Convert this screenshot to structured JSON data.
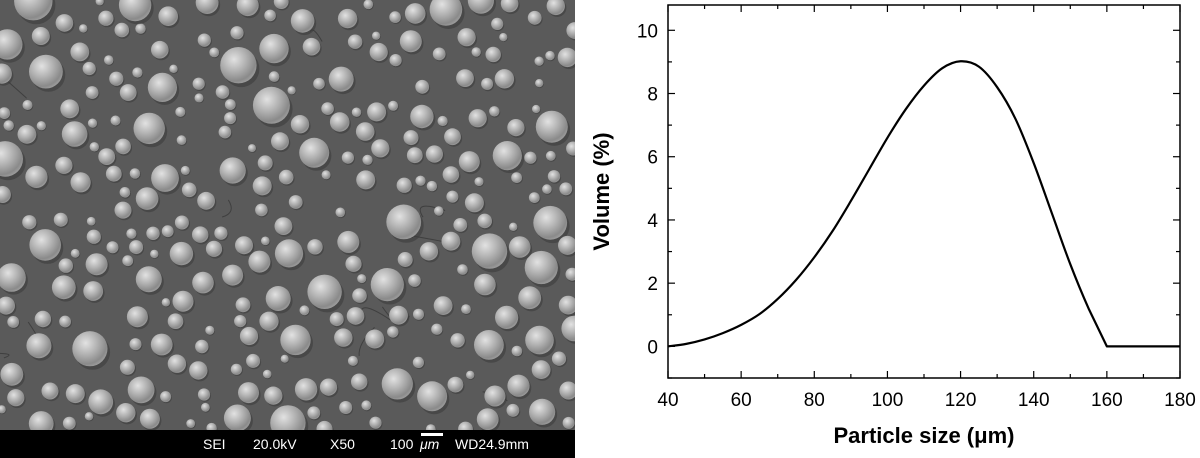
{
  "sem_image": {
    "detector": "SEI",
    "voltage": "20.0kV",
    "magnification": "X50",
    "scale_value": "100",
    "scale_unit": "μm",
    "working_distance": "WD24.9mm"
  },
  "chart_data": {
    "type": "line",
    "title": "",
    "xlabel": "Particle size (μm)",
    "ylabel": "Volume (%)",
    "xlim": [
      40,
      180
    ],
    "ylim": [
      -1,
      10.8
    ],
    "xticks": [
      40,
      60,
      80,
      100,
      120,
      140,
      160,
      180
    ],
    "yticks": [
      0,
      2,
      4,
      6,
      8,
      10
    ],
    "grid": false,
    "series": [
      {
        "x": [
          40,
          45,
          50,
          55,
          60,
          65,
          70,
          75,
          80,
          85,
          90,
          95,
          100,
          105,
          110,
          115,
          120,
          125,
          130,
          135,
          140,
          145,
          150,
          155,
          160,
          165,
          170,
          175,
          180
        ],
        "y": [
          0.0,
          0.08,
          0.22,
          0.42,
          0.68,
          1.02,
          1.5,
          2.1,
          2.82,
          3.65,
          4.6,
          5.6,
          6.6,
          7.5,
          8.25,
          8.8,
          9.02,
          8.85,
          8.2,
          7.2,
          5.8,
          4.2,
          2.6,
          1.2,
          0.0,
          0.0,
          0.0,
          0.0,
          0.0
        ]
      }
    ]
  }
}
